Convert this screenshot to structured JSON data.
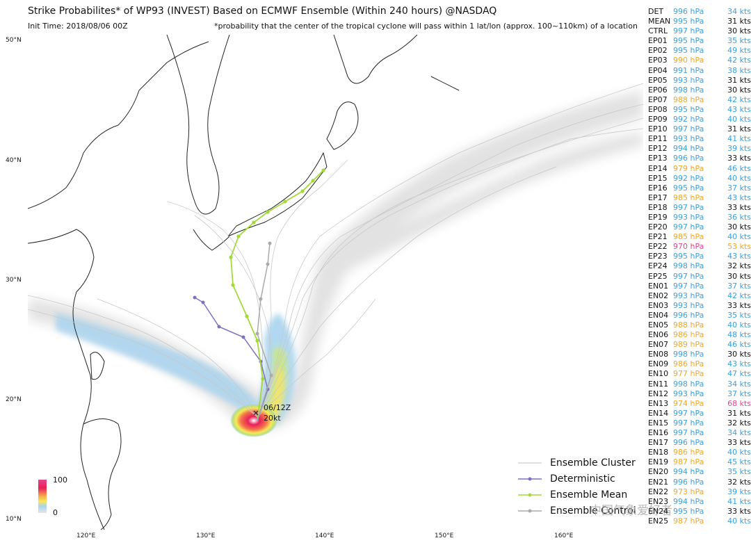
{
  "title": "Strike Probabilites* of WP93 (INVEST) Based on ECMWF Ensemble (Within 240 hours) @NASDAQ",
  "init_time": "Init Time: 2018/08/06 00Z",
  "footnote": "*probability that the center of the tropical cyclone will pass within 1 lat/lon (approx. 100~110km) of a location",
  "lat_labels": [
    "50°N",
    "40°N",
    "30°N",
    "20°N",
    "10°N"
  ],
  "lon_labels": [
    "120°E",
    "130°E",
    "140°E",
    "150°E",
    "160°E"
  ],
  "storm_label": {
    "time": "06/12Z",
    "wind": "20kt"
  },
  "colorbar": {
    "max": "100",
    "min": "0"
  },
  "legend": [
    {
      "label": "Ensemble Cluster",
      "color": "#cccccc"
    },
    {
      "label": "Deterministic",
      "color": "#7b72c4"
    },
    {
      "label": "Ensemble Mean",
      "color": "#a4d93a"
    },
    {
      "label": "Ensemble Control",
      "color": "#aaaaaa"
    }
  ],
  "watermark": "中国气象爱好者",
  "colors": {
    "white": "#111111",
    "blue": "#3a9fe0",
    "orange": "#f5a623",
    "pink": "#e8458b"
  },
  "members": [
    {
      "name": "DET",
      "pressure": "996 hPa",
      "pc": "blue",
      "wind": "34 kts",
      "wc": "blue"
    },
    {
      "name": "MEAN",
      "pressure": "995 hPa",
      "pc": "blue",
      "wind": "31 kts",
      "wc": "white"
    },
    {
      "name": "CTRL",
      "pressure": "997 hPa",
      "pc": "blue",
      "wind": "30 kts",
      "wc": "white"
    },
    {
      "name": "EP01",
      "pressure": "995 hPa",
      "pc": "blue",
      "wind": "35 kts",
      "wc": "blue"
    },
    {
      "name": "EP02",
      "pressure": "995 hPa",
      "pc": "blue",
      "wind": "49 kts",
      "wc": "blue"
    },
    {
      "name": "EP03",
      "pressure": "990 hPa",
      "pc": "orange",
      "wind": "42 kts",
      "wc": "blue"
    },
    {
      "name": "EP04",
      "pressure": "991 hPa",
      "pc": "blue",
      "wind": "38 kts",
      "wc": "blue"
    },
    {
      "name": "EP05",
      "pressure": "993 hPa",
      "pc": "blue",
      "wind": "31 kts",
      "wc": "white"
    },
    {
      "name": "EP06",
      "pressure": "998 hPa",
      "pc": "blue",
      "wind": "30 kts",
      "wc": "white"
    },
    {
      "name": "EP07",
      "pressure": "988 hPa",
      "pc": "orange",
      "wind": "42 kts",
      "wc": "blue"
    },
    {
      "name": "EP08",
      "pressure": "995 hPa",
      "pc": "blue",
      "wind": "43 kts",
      "wc": "blue"
    },
    {
      "name": "EP09",
      "pressure": "992 hPa",
      "pc": "blue",
      "wind": "40 kts",
      "wc": "blue"
    },
    {
      "name": "EP10",
      "pressure": "997 hPa",
      "pc": "blue",
      "wind": "31 kts",
      "wc": "white"
    },
    {
      "name": "EP11",
      "pressure": "993 hPa",
      "pc": "blue",
      "wind": "41 kts",
      "wc": "blue"
    },
    {
      "name": "EP12",
      "pressure": "994 hPa",
      "pc": "blue",
      "wind": "39 kts",
      "wc": "blue"
    },
    {
      "name": "EP13",
      "pressure": "996 hPa",
      "pc": "blue",
      "wind": "33 kts",
      "wc": "white"
    },
    {
      "name": "EP14",
      "pressure": "979 hPa",
      "pc": "orange",
      "wind": "46 kts",
      "wc": "blue"
    },
    {
      "name": "EP15",
      "pressure": "992 hPa",
      "pc": "blue",
      "wind": "40 kts",
      "wc": "blue"
    },
    {
      "name": "EP16",
      "pressure": "995 hPa",
      "pc": "blue",
      "wind": "37 kts",
      "wc": "blue"
    },
    {
      "name": "EP17",
      "pressure": "985 hPa",
      "pc": "orange",
      "wind": "43 kts",
      "wc": "blue"
    },
    {
      "name": "EP18",
      "pressure": "997 hPa",
      "pc": "blue",
      "wind": "33 kts",
      "wc": "white"
    },
    {
      "name": "EP19",
      "pressure": "993 hPa",
      "pc": "blue",
      "wind": "36 kts",
      "wc": "blue"
    },
    {
      "name": "EP20",
      "pressure": "997 hPa",
      "pc": "blue",
      "wind": "30 kts",
      "wc": "white"
    },
    {
      "name": "EP21",
      "pressure": "985 hPa",
      "pc": "orange",
      "wind": "40 kts",
      "wc": "blue"
    },
    {
      "name": "EP22",
      "pressure": "970 hPa",
      "pc": "pink",
      "wind": "53 kts",
      "wc": "orange"
    },
    {
      "name": "EP23",
      "pressure": "995 hPa",
      "pc": "blue",
      "wind": "43 kts",
      "wc": "blue"
    },
    {
      "name": "EP24",
      "pressure": "998 hPa",
      "pc": "blue",
      "wind": "32 kts",
      "wc": "white"
    },
    {
      "name": "EP25",
      "pressure": "997 hPa",
      "pc": "blue",
      "wind": "30 kts",
      "wc": "white"
    },
    {
      "name": "EN01",
      "pressure": "997 hPa",
      "pc": "blue",
      "wind": "37 kts",
      "wc": "blue"
    },
    {
      "name": "EN02",
      "pressure": "993 hPa",
      "pc": "blue",
      "wind": "42 kts",
      "wc": "blue"
    },
    {
      "name": "EN03",
      "pressure": "993 hPa",
      "pc": "blue",
      "wind": "33 kts",
      "wc": "white"
    },
    {
      "name": "EN04",
      "pressure": "996 hPa",
      "pc": "blue",
      "wind": "35 kts",
      "wc": "blue"
    },
    {
      "name": "EN05",
      "pressure": "988 hPa",
      "pc": "orange",
      "wind": "40 kts",
      "wc": "blue"
    },
    {
      "name": "EN06",
      "pressure": "986 hPa",
      "pc": "orange",
      "wind": "48 kts",
      "wc": "blue"
    },
    {
      "name": "EN07",
      "pressure": "989 hPa",
      "pc": "orange",
      "wind": "46 kts",
      "wc": "blue"
    },
    {
      "name": "EN08",
      "pressure": "998 hPa",
      "pc": "blue",
      "wind": "30 kts",
      "wc": "white"
    },
    {
      "name": "EN09",
      "pressure": "986 hPa",
      "pc": "orange",
      "wind": "43 kts",
      "wc": "blue"
    },
    {
      "name": "EN10",
      "pressure": "977 hPa",
      "pc": "orange",
      "wind": "47 kts",
      "wc": "blue"
    },
    {
      "name": "EN11",
      "pressure": "998 hPa",
      "pc": "blue",
      "wind": "34 kts",
      "wc": "blue"
    },
    {
      "name": "EN12",
      "pressure": "993 hPa",
      "pc": "blue",
      "wind": "37 kts",
      "wc": "blue"
    },
    {
      "name": "EN13",
      "pressure": "974 hPa",
      "pc": "orange",
      "wind": "68 kts",
      "wc": "pink"
    },
    {
      "name": "EN14",
      "pressure": "997 hPa",
      "pc": "blue",
      "wind": "31 kts",
      "wc": "white"
    },
    {
      "name": "EN15",
      "pressure": "997 hPa",
      "pc": "blue",
      "wind": "32 kts",
      "wc": "white"
    },
    {
      "name": "EN16",
      "pressure": "997 hPa",
      "pc": "blue",
      "wind": "34 kts",
      "wc": "blue"
    },
    {
      "name": "EN17",
      "pressure": "996 hPa",
      "pc": "blue",
      "wind": "33 kts",
      "wc": "white"
    },
    {
      "name": "EN18",
      "pressure": "986 hPa",
      "pc": "orange",
      "wind": "40 kts",
      "wc": "blue"
    },
    {
      "name": "EN19",
      "pressure": "987 hPa",
      "pc": "orange",
      "wind": "45 kts",
      "wc": "blue"
    },
    {
      "name": "EN20",
      "pressure": "994 hPa",
      "pc": "blue",
      "wind": "35 kts",
      "wc": "blue"
    },
    {
      "name": "EN21",
      "pressure": "996 hPa",
      "pc": "blue",
      "wind": "32 kts",
      "wc": "white"
    },
    {
      "name": "EN22",
      "pressure": "973 hPa",
      "pc": "orange",
      "wind": "39 kts",
      "wc": "blue"
    },
    {
      "name": "EN23",
      "pressure": "994 hPa",
      "pc": "blue",
      "wind": "41 kts",
      "wc": "blue"
    },
    {
      "name": "EN24",
      "pressure": "995 hPa",
      "pc": "blue",
      "wind": "33 kts",
      "wc": "white"
    },
    {
      "name": "EN25",
      "pressure": "987 hPa",
      "pc": "orange",
      "wind": "40 kts",
      "wc": "blue"
    }
  ]
}
